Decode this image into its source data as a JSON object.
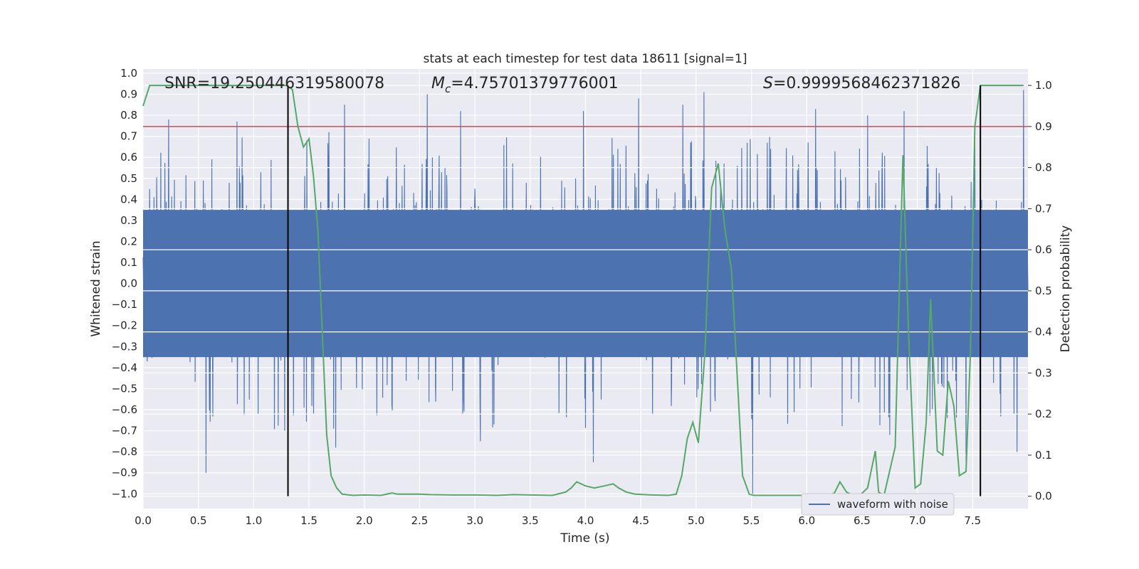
{
  "chart_data": {
    "type": "line",
    "title": "stats at each timestep for test data 18611 [signal=1]",
    "xlabel": "Time (s)",
    "ylabel": "Whitened strain",
    "y2label": "Detection probability",
    "xlim": [
      0.0,
      8.0
    ],
    "ylim": [
      -1.07,
      1.02
    ],
    "y2lim": [
      -0.03,
      1.04
    ],
    "xticks": [
      "0.0",
      "0.5",
      "1.0",
      "1.5",
      "2.0",
      "2.5",
      "3.0",
      "3.5",
      "4.0",
      "4.5",
      "5.0",
      "5.5",
      "6.0",
      "6.5",
      "7.0",
      "7.5"
    ],
    "yticks": [
      "1.0",
      "0.9",
      "0.8",
      "0.7",
      "0.6",
      "0.5",
      "0.4",
      "0.3",
      "0.2",
      "0.1",
      "0.0",
      "-0.1",
      "-0.2",
      "-0.3",
      "-0.4",
      "-0.5",
      "-0.6",
      "-0.7",
      "-0.8",
      "-0.9",
      "-1.0"
    ],
    "y2ticks": [
      "1.0",
      "0.9",
      "0.8",
      "0.7",
      "0.6",
      "0.5",
      "0.4",
      "0.3",
      "0.2",
      "0.1",
      "0.0"
    ],
    "annotations": {
      "snr": "SNR=19.250446319580078",
      "mc_symbol": "M",
      "mc_sub": "c",
      "mc_value": "=4.75701379776001",
      "s_symbol": "S",
      "s_value": "=0.9999568462371826"
    },
    "threshold": {
      "axis": "right",
      "value": 0.9,
      "color": "#c44e52"
    },
    "vertical_markers": {
      "x": [
        1.31,
        7.57
      ],
      "y2_range": [
        0.0,
        1.0
      ],
      "color": "#000000"
    },
    "series": [
      {
        "name": "waveform with noise",
        "axis": "left",
        "color": "#4c72b0",
        "description": "dense noisy strain waveform sampled across 0-8 s",
        "envelope_core": [
          -0.35,
          0.35
        ],
        "peaks_x": [
          0.23,
          0.85,
          1.68,
          1.82,
          2.57,
          2.87,
          3.98,
          4.48,
          4.88,
          5.07,
          6.08,
          6.55,
          6.88,
          7.52,
          7.96
        ],
        "peaks_y": [
          0.78,
          0.77,
          0.72,
          0.85,
          0.9,
          0.82,
          0.82,
          0.88,
          0.85,
          0.91,
          0.83,
          0.8,
          0.82,
          0.72,
          0.92
        ],
        "troughs_x": [
          0.57,
          1.28,
          1.74,
          3.05,
          4.07,
          5.51,
          6.75,
          7.44,
          7.9
        ],
        "troughs_y": [
          -0.9,
          -0.7,
          -0.78,
          -0.75,
          -0.85,
          -1.0,
          -0.72,
          -0.85,
          -0.8
        ]
      },
      {
        "name": "detection probability",
        "axis": "right",
        "color": "#55a868",
        "x": [
          0.0,
          0.06,
          0.12,
          0.25,
          0.5,
          0.75,
          1.0,
          1.2,
          1.3,
          1.35,
          1.4,
          1.45,
          1.5,
          1.54,
          1.58,
          1.62,
          1.66,
          1.7,
          1.75,
          1.8,
          1.9,
          2.0,
          2.15,
          2.25,
          2.3,
          2.5,
          2.6,
          2.8,
          3.0,
          3.2,
          3.35,
          3.5,
          3.7,
          3.82,
          3.87,
          3.92,
          4.0,
          4.08,
          4.17,
          4.25,
          4.3,
          4.37,
          4.45,
          4.6,
          4.75,
          4.82,
          4.87,
          4.92,
          4.97,
          5.02,
          5.08,
          5.14,
          5.2,
          5.26,
          5.32,
          5.42,
          5.48,
          5.52,
          5.6,
          5.8,
          6.0,
          6.2,
          6.25,
          6.3,
          6.36,
          6.42,
          6.48,
          6.55,
          6.62,
          6.65,
          6.68,
          6.7,
          6.8,
          6.87,
          6.92,
          6.98,
          7.03,
          7.08,
          7.12,
          7.18,
          7.23,
          7.28,
          7.33,
          7.38,
          7.44,
          7.48,
          7.52,
          7.57,
          7.62,
          7.66,
          7.72,
          7.8,
          7.96
        ],
        "y": [
          0.95,
          1.0,
          1.0,
          1.0,
          1.0,
          1.0,
          1.0,
          1.0,
          1.0,
          0.99,
          0.9,
          0.85,
          0.87,
          0.78,
          0.65,
          0.4,
          0.15,
          0.05,
          0.02,
          0.005,
          0.002,
          0.003,
          0.002,
          0.008,
          0.005,
          0.005,
          0.004,
          0.003,
          0.003,
          0.002,
          0.004,
          0.003,
          0.002,
          0.01,
          0.02,
          0.035,
          0.025,
          0.02,
          0.025,
          0.03,
          0.02,
          0.01,
          0.005,
          0.003,
          0.002,
          0.005,
          0.05,
          0.14,
          0.18,
          0.13,
          0.35,
          0.75,
          0.81,
          0.65,
          0.55,
          0.05,
          0.005,
          0.002,
          0.002,
          0.002,
          0.002,
          0.002,
          0.008,
          0.035,
          0.01,
          0.002,
          0.002,
          0.02,
          0.11,
          0.01,
          0.005,
          0.003,
          0.12,
          0.83,
          0.4,
          0.02,
          0.03,
          0.18,
          0.48,
          0.11,
          0.1,
          0.28,
          0.22,
          0.05,
          0.06,
          0.35,
          0.9,
          1.0,
          1.0,
          1.0,
          1.0,
          1.0,
          1.0
        ]
      }
    ],
    "legend": {
      "placement": "lower-center-right",
      "entries": [
        "waveform with noise"
      ]
    }
  }
}
